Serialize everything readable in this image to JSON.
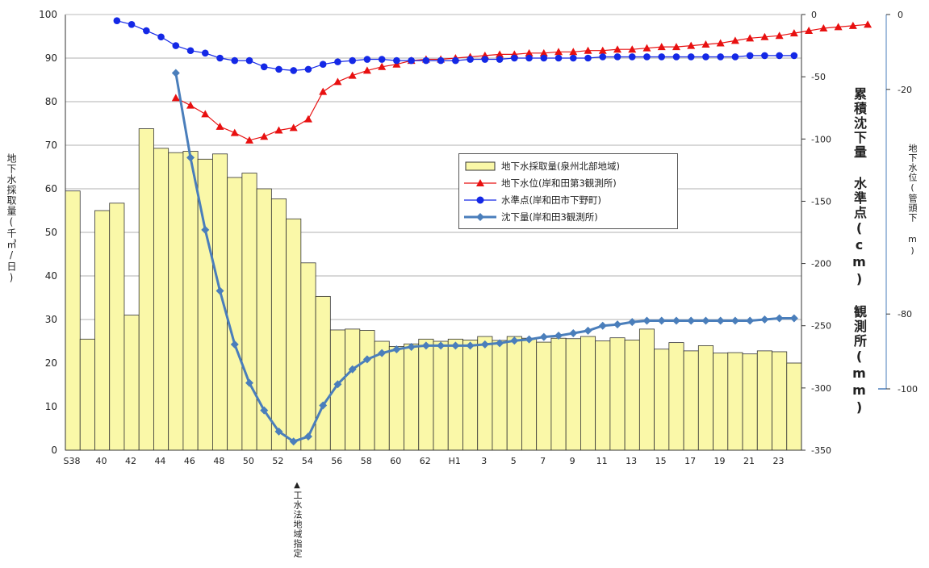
{
  "colors": {
    "bar_fill": "#FAF8A8",
    "bar_stroke": "#333333",
    "water_level": "#E81010",
    "benchmark": "#1428E6",
    "subsidence": "#4A7EBB",
    "grid": "#b0b0b0"
  },
  "labels": {
    "left_axis": "地下水採取量(千㎥/日)",
    "right_axis_main": "累積沈下量 水準点(cm) 観測所(mm)",
    "right_axis_far": "地下水位(管頭下 m)",
    "annotation": "工水法地域指定",
    "annotation_marker": "▲"
  },
  "chart_data": {
    "type": "bar",
    "title": "",
    "x_tick_labels": [
      "S38",
      "40",
      "42",
      "44",
      "46",
      "48",
      "50",
      "52",
      "54",
      "56",
      "58",
      "60",
      "62",
      "H1",
      "3",
      "5",
      "7",
      "9",
      "11",
      "13",
      "15",
      "17",
      "19",
      "21",
      "23"
    ],
    "axes": {
      "left": {
        "label": "地下水採取量(千㎥/日)",
        "ylim": [
          0,
          100
        ],
        "ticks": [
          0,
          10,
          20,
          30,
          40,
          50,
          60,
          70,
          80,
          90,
          100
        ]
      },
      "right": {
        "label": "累積沈下量 水準点(cm) 観測所(mm)",
        "ylim": [
          -350,
          0
        ],
        "ticks": [
          0,
          -50,
          -100,
          -150,
          -200,
          -250,
          -300,
          -350
        ]
      },
      "far_right": {
        "label": "地下水位(管頭下 m)",
        "ylim": [
          -100,
          0
        ],
        "ticks": [
          0,
          -20,
          -80,
          -100
        ]
      }
    },
    "grid": true,
    "legend_position": "center-right",
    "series": [
      {
        "name": "地下水採取量(泉州北部地域)",
        "type": "bar",
        "axis": "left",
        "start_index": 0,
        "values": [
          59.5,
          25.5,
          55,
          56.7,
          31,
          73.8,
          69.3,
          68.3,
          68.6,
          66.8,
          68,
          62.6,
          63.6,
          60,
          57.7,
          53.1,
          43,
          35.3,
          27.6,
          27.8,
          27.5,
          25,
          23.8,
          24.4,
          25.5,
          25,
          25.5,
          25.3,
          26.1,
          25.2,
          26.1,
          25.7,
          24.8,
          25.7,
          25.6,
          26.1,
          25.1,
          25.8,
          25.3,
          27.8,
          23.2,
          24.7,
          22.8,
          24,
          22.3,
          22.4,
          22.1,
          22.8,
          22.6,
          20
        ]
      },
      {
        "name": "地下水位(岸和田第3観測所)",
        "type": "line",
        "marker": "triangle",
        "axis": "right",
        "start_index": 7,
        "values": [
          -67,
          -73,
          -80,
          -90,
          -95,
          -101,
          -98,
          -93,
          -91,
          -84,
          -62,
          -54,
          -49,
          -45,
          -42,
          -40,
          -37,
          -36,
          -36,
          -35,
          -34,
          -33,
          -32,
          -32,
          -31,
          -31,
          -30,
          -30,
          -29,
          -29,
          -28,
          -28,
          -27,
          -26,
          -26,
          -25,
          -24,
          -23,
          -21,
          -19,
          -18,
          -17,
          -15,
          -13,
          -11,
          -10,
          -9,
          -8
        ]
      },
      {
        "name": "水準点(岸和田市下野町)",
        "type": "line",
        "marker": "circle",
        "axis": "right",
        "start_index": 3,
        "values": [
          -5,
          -8,
          -13,
          -18,
          -25,
          -29,
          -31,
          -35,
          -37,
          -37,
          -42,
          -44,
          -45,
          -44,
          -40,
          -38,
          -37,
          -36,
          -36,
          -37,
          -37,
          -37,
          -37,
          -37,
          -36,
          -36,
          -36,
          -35,
          -35,
          -35,
          -35,
          -35,
          -35,
          -34,
          -34,
          -34,
          -34,
          -34,
          -34,
          -34,
          -34,
          -34,
          -34,
          -33,
          -33,
          -33,
          -33
        ]
      },
      {
        "name": "沈下量(岸和田3観測所)",
        "type": "line",
        "marker": "diamond",
        "axis": "right",
        "start_index": 7,
        "values": [
          -47,
          -115,
          -173,
          -222,
          -265,
          -296,
          -318,
          -335,
          -343,
          -339,
          -314,
          -297,
          -285,
          -277,
          -272,
          -269,
          -267,
          -266,
          -266,
          -266,
          -266,
          -265,
          -264,
          -262,
          -261,
          -259,
          -258,
          -256,
          -254,
          -250,
          -249,
          -247,
          -246,
          -246,
          -246,
          -246,
          -246,
          -246,
          -246,
          -246,
          -245,
          -244,
          -244
        ]
      }
    ]
  }
}
